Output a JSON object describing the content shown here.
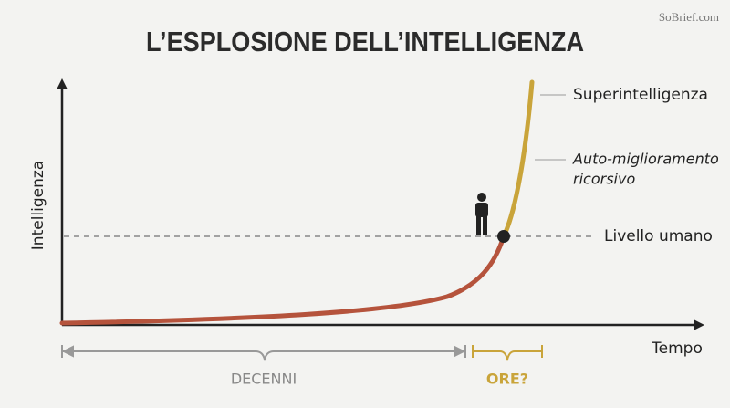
{
  "watermark": "SoBrief.com",
  "title": "L’ESPLOSIONE DELL’INTELLIGENZA",
  "axes": {
    "y_label": "Intelligenza",
    "x_label": "Tempo"
  },
  "labels": {
    "superintelligence": "Superintelligenza",
    "self_improvement": [
      "Auto-miglioramento",
      "ricorsivo"
    ],
    "human_level": "Livello umano"
  },
  "spans": {
    "decades": "DECENNI",
    "hours": "ORE?"
  }
}
